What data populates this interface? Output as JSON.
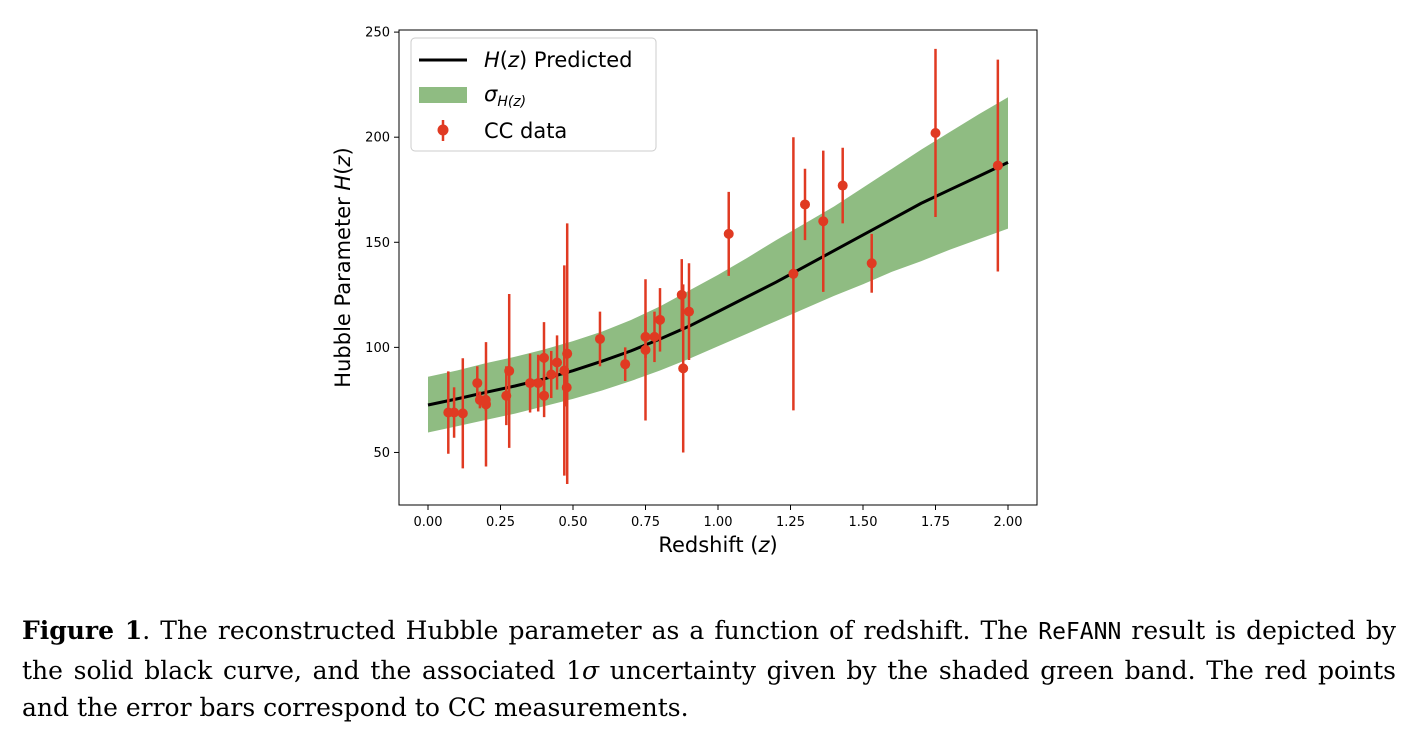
{
  "chart_data": {
    "type": "line",
    "xlabel": {
      "main": "Redshift (",
      "var": "z",
      "end": ")"
    },
    "ylabel": {
      "main": "Hubble Parameter ",
      "var": "H",
      "paren_open": "(",
      "var2": "z",
      "paren_close": ")"
    },
    "xlim": [
      -0.1,
      2.1
    ],
    "ylim": [
      25,
      251
    ],
    "x_ticks": [
      0.0,
      0.25,
      0.5,
      0.75,
      1.0,
      1.25,
      1.5,
      1.75,
      2.0
    ],
    "x_tick_labels": [
      "0.00",
      "0.25",
      "0.50",
      "0.75",
      "1.00",
      "1.25",
      "1.50",
      "1.75",
      "2.00"
    ],
    "y_ticks": [
      50,
      100,
      150,
      200,
      250
    ],
    "y_tick_labels": [
      "50",
      "100",
      "150",
      "200",
      "250"
    ],
    "grid": false,
    "legend_position": "top-left",
    "legend": {
      "predicted": {
        "var": "H",
        "paren_open": "(",
        "var2": "z",
        "paren_close": ")",
        "text": " Predicted"
      },
      "sigma": {
        "symbol": "σ",
        "sub": "H(z)"
      },
      "cc": {
        "text": "CC data"
      }
    },
    "colors": {
      "curve": "#000000",
      "band": "#8fbc82",
      "points": "#e03a22"
    },
    "predicted": {
      "x": [
        0.0,
        0.1,
        0.2,
        0.3,
        0.4,
        0.5,
        0.6,
        0.7,
        0.8,
        0.9,
        1.0,
        1.1,
        1.2,
        1.3,
        1.4,
        1.5,
        1.6,
        1.7,
        1.8,
        1.9,
        2.0
      ],
      "y": [
        72.6,
        75.5,
        78.6,
        81.6,
        85.0,
        88.9,
        93.4,
        98.3,
        104.0,
        110.0,
        117.0,
        124.0,
        131.0,
        138.5,
        146.0,
        153.5,
        161.0,
        168.5,
        175.0,
        181.5,
        188.0
      ],
      "lower": [
        59.5,
        62.5,
        65.5,
        68.5,
        72.0,
        75.5,
        79.5,
        84.0,
        89.0,
        94.5,
        100.5,
        106.5,
        112.5,
        118.5,
        124.5,
        130.0,
        136.0,
        141.0,
        146.5,
        151.5,
        156.5
      ],
      "upper": [
        86.0,
        89.0,
        92.5,
        95.5,
        99.0,
        103.0,
        107.5,
        113.0,
        119.5,
        127.0,
        134.5,
        142.5,
        151.0,
        159.0,
        167.0,
        176.0,
        185.0,
        194.0,
        202.5,
        211.0,
        219.0
      ]
    },
    "cc_data": {
      "z": [
        0.07,
        0.09,
        0.12,
        0.17,
        0.179,
        0.199,
        0.2,
        0.27,
        0.28,
        0.352,
        0.38,
        0.4,
        0.4004,
        0.425,
        0.445,
        0.47,
        0.4783,
        0.48,
        0.593,
        0.68,
        0.75,
        0.75,
        0.781,
        0.8,
        0.875,
        0.88,
        0.9,
        1.037,
        1.26,
        1.3,
        1.363,
        1.43,
        1.53,
        1.75,
        1.965
      ],
      "H": [
        69,
        69,
        68.6,
        83,
        75,
        75,
        72.9,
        77,
        88.8,
        83,
        83,
        95,
        77,
        87.1,
        92.8,
        89,
        80.9,
        97,
        104,
        92,
        98.8,
        105,
        105,
        113.1,
        125,
        90,
        117,
        154,
        135,
        168,
        160,
        177,
        140,
        202,
        186.5
      ],
      "err": [
        19.6,
        12,
        26.2,
        8,
        4,
        5,
        29.6,
        14,
        36.6,
        14,
        13.5,
        17,
        10.2,
        11.2,
        12.9,
        50,
        9,
        62,
        13,
        8,
        33.6,
        10,
        12,
        15.1,
        17,
        40,
        23,
        20,
        65,
        17,
        33.6,
        18,
        14,
        40,
        50.4
      ]
    }
  },
  "caption": {
    "label": "Figure 1",
    "sep": ".  ",
    "part1": "The reconstructed Hubble parameter as a function of redshift.  The ",
    "code": "ReFANN",
    "part2": " result is depicted by the solid black curve, and the associated 1",
    "sigma": "σ",
    "part3": " uncertainty given by the shaded green band. The red points and the error bars correspond to CC measurements."
  }
}
